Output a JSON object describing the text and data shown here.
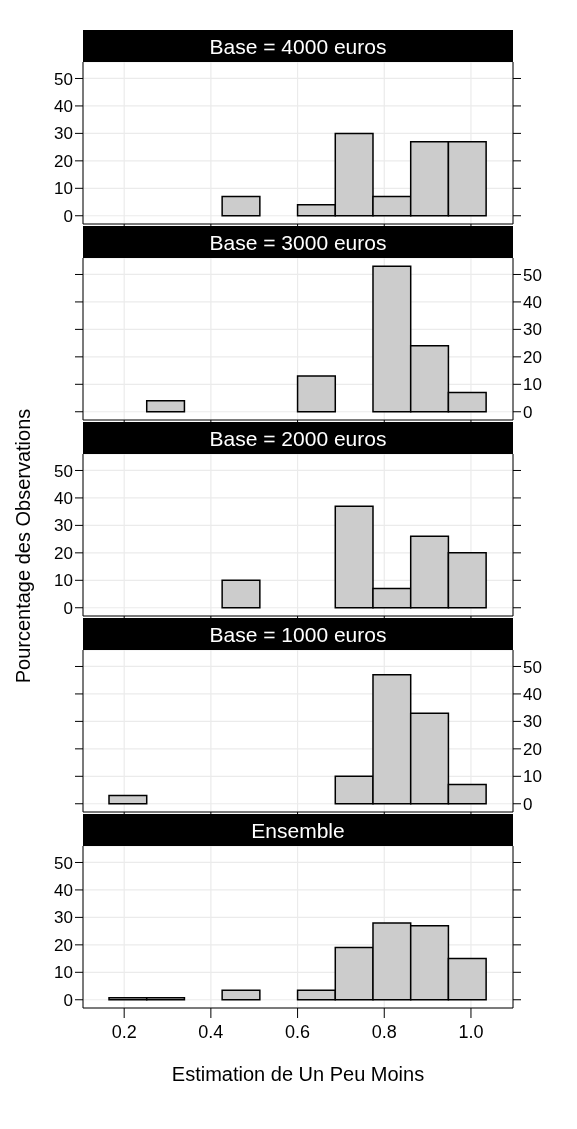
{
  "chart_data": [
    {
      "type": "histogram",
      "title": "Base = 4000 euros",
      "bins": [
        0.165,
        0.252,
        0.339,
        0.426,
        0.513,
        0.6,
        0.687,
        0.774,
        0.861,
        0.948,
        1.035
      ],
      "series": [
        {
          "color": "#cccccc",
          "values": [
            0,
            0,
            0,
            7,
            0,
            4,
            30,
            7,
            27,
            27
          ]
        }
      ],
      "xlim": [
        0.105,
        1.097
      ],
      "xticks": [
        {
          "value": 0.2,
          "label": null
        },
        {
          "value": 0.4,
          "label": null
        },
        {
          "value": 0.6,
          "label": null
        },
        {
          "value": 0.8,
          "label": null
        },
        {
          "value": 1,
          "label": null
        }
      ],
      "ylim": [
        -3,
        56
      ],
      "yticks": [
        0,
        10,
        20,
        30,
        40,
        50
      ],
      "grid": true,
      "tick_labels": "y"
    },
    {
      "type": "histogram",
      "title": "Base = 3000 euros",
      "bins": [
        0.165,
        0.252,
        0.339,
        0.426,
        0.513,
        0.6,
        0.687,
        0.774,
        0.861,
        0.948,
        1.035
      ],
      "series": [
        {
          "color": "#cccccc",
          "values": [
            0,
            4,
            0,
            0,
            0,
            13,
            0,
            53,
            24,
            7
          ]
        }
      ],
      "xlim": [
        0.105,
        1.097
      ],
      "xticks": [
        {
          "value": 0.2,
          "label": null
        },
        {
          "value": 0.4,
          "label": null
        },
        {
          "value": 0.6,
          "label": null
        },
        {
          "value": 0.8,
          "label": null
        },
        {
          "value": 1,
          "label": null
        }
      ],
      "ylim": [
        -3,
        56
      ],
      "yticks": [
        0,
        10,
        20,
        30,
        40,
        50
      ],
      "grid": true,
      "tick_labels": "y"
    },
    {
      "type": "histogram",
      "title": "Base = 2000 euros",
      "ylabel": "Pourcentage des Observations",
      "bins": [
        0.165,
        0.252,
        0.339,
        0.426,
        0.513,
        0.6,
        0.687,
        0.774,
        0.861,
        0.948,
        1.035
      ],
      "series": [
        {
          "color": "#cccccc",
          "values": [
            0,
            0,
            0,
            10,
            0,
            0,
            37,
            7,
            26,
            20
          ]
        }
      ],
      "xlim": [
        0.105,
        1.097
      ],
      "xticks": [
        {
          "value": 0.2,
          "label": null
        },
        {
          "value": 0.4,
          "label": null
        },
        {
          "value": 0.6,
          "label": null
        },
        {
          "value": 0.8,
          "label": null
        },
        {
          "value": 1,
          "label": null
        }
      ],
      "ylim": [
        -3,
        56
      ],
      "yticks": [
        0,
        10,
        20,
        30,
        40,
        50
      ],
      "grid": true,
      "tick_labels": "y"
    },
    {
      "type": "histogram",
      "title": "Base = 1000 euros",
      "bins": [
        0.165,
        0.252,
        0.339,
        0.426,
        0.513,
        0.6,
        0.687,
        0.774,
        0.861,
        0.948,
        1.035
      ],
      "series": [
        {
          "color": "#cccccc",
          "values": [
            3,
            0,
            0,
            0,
            0,
            0,
            10,
            47,
            33,
            7
          ]
        }
      ],
      "xlim": [
        0.105,
        1.097
      ],
      "xticks": [
        {
          "value": 0.2,
          "label": null
        },
        {
          "value": 0.4,
          "label": null
        },
        {
          "value": 0.6,
          "label": null
        },
        {
          "value": 0.8,
          "label": null
        },
        {
          "value": 1,
          "label": null
        }
      ],
      "ylim": [
        -3,
        56
      ],
      "yticks": [
        0,
        10,
        20,
        30,
        40,
        50
      ],
      "grid": true,
      "tick_labels": "y"
    },
    {
      "type": "histogram",
      "title": "Ensemble",
      "xlabel": "Estimation de Un Peu Moins",
      "bins": [
        0.165,
        0.252,
        0.339,
        0.426,
        0.513,
        0.6,
        0.687,
        0.774,
        0.861,
        0.948,
        1.035
      ],
      "series": [
        {
          "color": "#cccccc",
          "values": [
            0.7,
            0.7,
            0,
            3.5,
            0,
            3.5,
            19,
            28,
            27,
            15
          ]
        }
      ],
      "xlim": [
        0.105,
        1.097
      ],
      "xticks": [
        0.2,
        0.4,
        0.6,
        0.8,
        {
          "value": 1,
          "label": "1.0"
        }
      ],
      "ylim": [
        -3,
        56
      ],
      "yticks": [
        0,
        10,
        20,
        30,
        40,
        50
      ],
      "grid": true
    }
  ]
}
